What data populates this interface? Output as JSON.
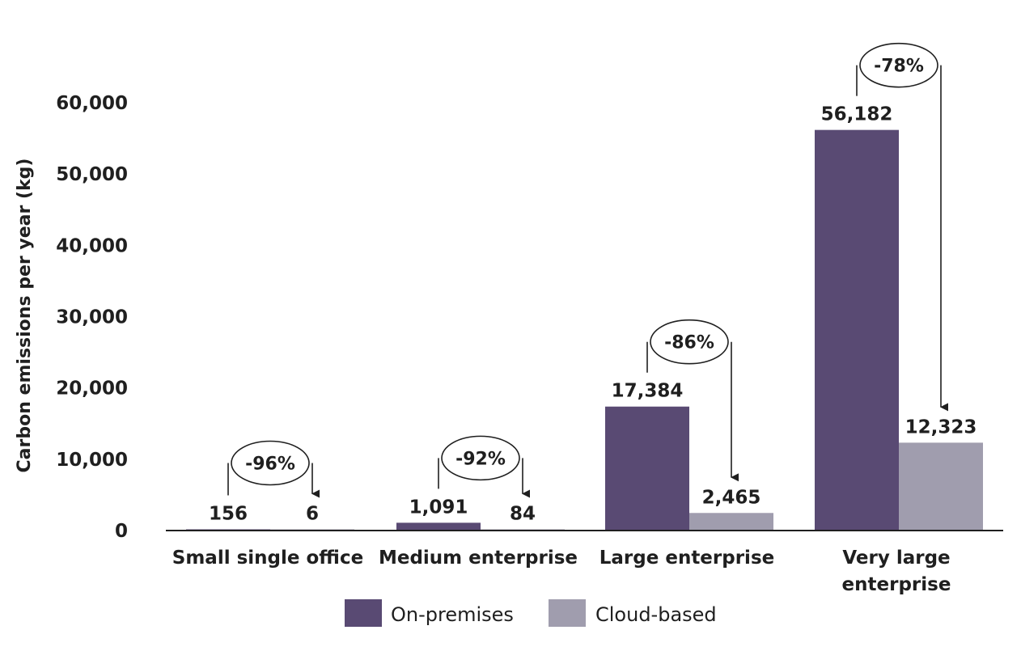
{
  "chart_data": {
    "type": "bar",
    "ylabel": "Carbon emissions per year (kg)",
    "categories": [
      [
        "Small single office"
      ],
      [
        "Medium enterprise"
      ],
      [
        "Large enterprise"
      ],
      [
        "Very large",
        "enterprise"
      ]
    ],
    "series": [
      {
        "name": "On-premises",
        "color": "#594a73",
        "values": [
          156,
          1091,
          17384,
          56182
        ],
        "labels": [
          "156",
          "1,091",
          "17,384",
          "56,182"
        ]
      },
      {
        "name": "Cloud-based",
        "color": "#a09dae",
        "values": [
          6,
          84,
          2465,
          12323
        ],
        "labels": [
          "6",
          "84",
          "2,465",
          "12,323"
        ]
      }
    ],
    "reductions": [
      "-96%",
      "-92%",
      "-86%",
      "-78%"
    ],
    "yticks": [
      0,
      10000,
      20000,
      30000,
      40000,
      50000,
      60000
    ],
    "ytick_labels": [
      "0",
      "10,000",
      "20,000",
      "30,000",
      "40,000",
      "50,000",
      "60,000"
    ],
    "ylim": [
      0,
      60000
    ],
    "grid": false,
    "legend": "bottom"
  }
}
